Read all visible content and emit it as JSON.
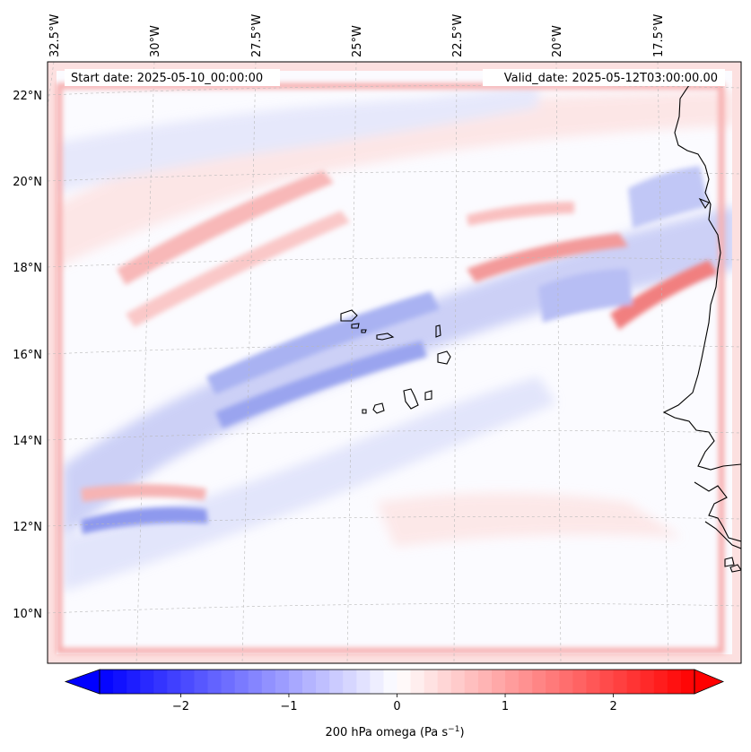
{
  "header": {
    "start_date": "Start date: 2025-05-10_00:00:00",
    "valid_date": "Valid_date: 2025-05-12T03:00:00.00"
  },
  "map": {
    "lon_labels": [
      "32.5°W",
      "30°W",
      "27.5°W",
      "25°W",
      "22.5°W",
      "20°W",
      "17.5°W"
    ],
    "lat_labels": [
      "22°N",
      "20°N",
      "18°N",
      "16°N",
      "14°N",
      "12°N",
      "10°N"
    ],
    "gridlines": "dashed",
    "coastlines": true
  },
  "colorbar": {
    "ticks": [
      "−2",
      "−1",
      "0",
      "1",
      "2"
    ],
    "tick_values": [
      -2,
      -1,
      0,
      1,
      2
    ],
    "range": [
      -2.75,
      2.75
    ],
    "extend": "both",
    "label": "200 hPa omega (Pa s",
    "label_sup": "−1",
    "label_close": ")",
    "colors": {
      "min": "#0000ff",
      "mid": "#ffffff",
      "max": "#ff0000"
    }
  }
}
